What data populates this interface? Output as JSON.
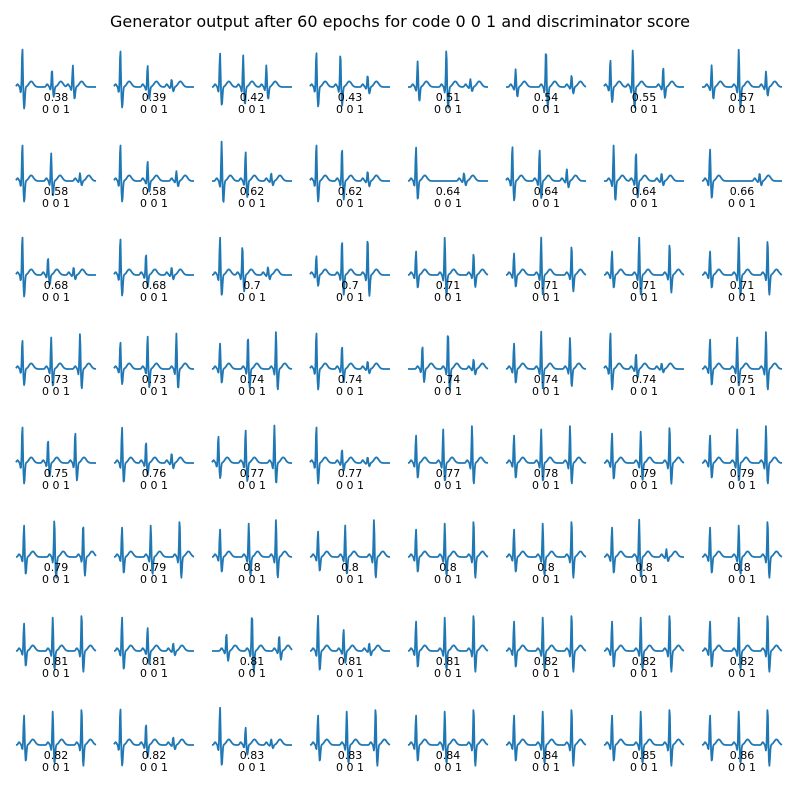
{
  "title": "Generator output after 60 epochs for code 0 0 1 and discriminator score",
  "colors": {
    "trace": "#1f77b4",
    "background": "#ffffff",
    "text": "#000000"
  },
  "chart_data": {
    "type": "line",
    "layout": "small-multiples 8x8 grid",
    "title": "Generator output after 60 epochs for code 0 0 1 and discriminator score",
    "axes_visible": false,
    "panel_caption_code": "0 0 1",
    "panels": [
      {
        "score": "0.38",
        "code": "0 0 1",
        "beats": [
          [
            0.08,
            1.0
          ],
          [
            0.45,
            0.45
          ],
          [
            0.71,
            0.55
          ]
        ]
      },
      {
        "score": "0.39",
        "code": "0 0 1",
        "beats": [
          [
            0.08,
            0.95
          ],
          [
            0.42,
            0.55
          ],
          [
            0.72,
            0.2
          ]
        ]
      },
      {
        "score": "0.42",
        "code": "0 0 1",
        "beats": [
          [
            0.1,
            0.85
          ],
          [
            0.39,
            0.8
          ],
          [
            0.68,
            0.55
          ]
        ]
      },
      {
        "score": "0.43",
        "code": "0 0 1",
        "beats": [
          [
            0.08,
            0.9
          ],
          [
            0.38,
            0.85
          ],
          [
            0.72,
            0.3
          ]
        ]
      },
      {
        "score": "0.51",
        "code": "0 0 1",
        "beats": [
          [
            0.12,
            0.65
          ],
          [
            0.48,
            0.95
          ],
          [
            0.78,
            0.2
          ]
        ]
      },
      {
        "score": "0.54",
        "code": "0 0 1",
        "beats": [
          [
            0.12,
            0.45
          ],
          [
            0.5,
            0.95
          ],
          [
            0.82,
            0.3
          ]
        ]
      },
      {
        "score": "0.55",
        "code": "0 0 1",
        "beats": [
          [
            0.08,
            0.7
          ],
          [
            0.36,
            0.95
          ],
          [
            0.74,
            0.5
          ]
        ]
      },
      {
        "score": "0.57",
        "code": "0 0 1",
        "beats": [
          [
            0.12,
            0.55
          ],
          [
            0.46,
            0.95
          ],
          [
            0.8,
            0.4
          ]
        ]
      },
      {
        "score": "0.58",
        "code": "0 0 1",
        "beats": [
          [
            0.08,
            0.95
          ],
          [
            0.44,
            0.7
          ],
          [
            0.8,
            0.2
          ]
        ]
      },
      {
        "score": "0.58",
        "code": "0 0 1",
        "beats": [
          [
            0.08,
            0.95
          ],
          [
            0.42,
            0.5
          ],
          [
            0.78,
            0.25
          ]
        ]
      },
      {
        "score": "0.62",
        "code": "0 0 1",
        "beats": [
          [
            0.12,
            1.0
          ],
          [
            0.42,
            0.75
          ],
          [
            0.74,
            0.2
          ]
        ]
      },
      {
        "score": "0.62",
        "code": "0 0 1",
        "beats": [
          [
            0.08,
            0.95
          ],
          [
            0.4,
            0.85
          ],
          [
            0.72,
            0.25
          ]
        ]
      },
      {
        "score": "0.64",
        "code": "0 0 1",
        "beats": [
          [
            0.1,
            0.85
          ],
          [
            0.7,
            0.2
          ]
        ]
      },
      {
        "score": "0.64",
        "code": "0 0 1",
        "beats": [
          [
            0.08,
            0.9
          ],
          [
            0.42,
            0.8
          ],
          [
            0.76,
            0.3
          ]
        ]
      },
      {
        "score": "0.64",
        "code": "0 0 1",
        "beats": [
          [
            0.12,
            0.9
          ],
          [
            0.4,
            0.75
          ],
          [
            0.72,
            0.2
          ]
        ]
      },
      {
        "score": "0.66",
        "code": "0 0 1",
        "beats": [
          [
            0.1,
            0.8
          ],
          [
            0.72,
            0.2
          ]
        ]
      },
      {
        "score": "0.68",
        "code": "0 0 1",
        "beats": [
          [
            0.08,
            1.0
          ],
          [
            0.4,
            0.45
          ],
          [
            0.72,
            0.2
          ]
        ]
      },
      {
        "score": "0.68",
        "code": "0 0 1",
        "beats": [
          [
            0.08,
            0.95
          ],
          [
            0.4,
            0.55
          ],
          [
            0.72,
            0.2
          ]
        ]
      },
      {
        "score": "0.7",
        "code": "0 0 1",
        "beats": [
          [
            0.1,
            0.95
          ],
          [
            0.38,
            0.75
          ],
          [
            0.7,
            0.2
          ]
        ]
      },
      {
        "score": "0.7",
        "code": "0 0 1",
        "beats": [
          [
            0.08,
            0.5
          ],
          [
            0.4,
            0.9
          ],
          [
            0.72,
            0.95
          ]
        ]
      },
      {
        "score": "0.71",
        "code": "0 0 1",
        "beats": [
          [
            0.1,
            0.6
          ],
          [
            0.46,
            0.95
          ],
          [
            0.82,
            0.55
          ]
        ]
      },
      {
        "score": "0.71",
        "code": "0 0 1",
        "beats": [
          [
            0.1,
            0.55
          ],
          [
            0.44,
            0.95
          ],
          [
            0.82,
            0.75
          ]
        ]
      },
      {
        "score": "0.71",
        "code": "0 0 1",
        "beats": [
          [
            0.1,
            0.6
          ],
          [
            0.44,
            0.95
          ],
          [
            0.82,
            0.8
          ]
        ]
      },
      {
        "score": "0.71",
        "code": "0 0 1",
        "beats": [
          [
            0.1,
            0.6
          ],
          [
            0.46,
            0.95
          ],
          [
            0.82,
            0.9
          ]
        ]
      },
      {
        "score": "0.73",
        "code": "0 0 1",
        "beats": [
          [
            0.08,
            0.75
          ],
          [
            0.44,
            0.8
          ],
          [
            0.8,
            0.9
          ]
        ]
      },
      {
        "score": "0.73",
        "code": "0 0 1",
        "beats": [
          [
            0.08,
            0.7
          ],
          [
            0.42,
            0.85
          ],
          [
            0.78,
            0.9
          ]
        ]
      },
      {
        "score": "0.74",
        "code": "0 0 1",
        "beats": [
          [
            0.1,
            0.65
          ],
          [
            0.45,
            0.85
          ],
          [
            0.8,
            0.95
          ]
        ]
      },
      {
        "score": "0.74",
        "code": "0 0 1",
        "beats": [
          [
            0.08,
            0.95
          ],
          [
            0.4,
            0.6
          ],
          [
            0.72,
            0.2
          ]
        ]
      },
      {
        "score": "0.74",
        "code": "0 0 1",
        "beats": [
          [
            0.18,
            0.6
          ],
          [
            0.5,
            0.95
          ],
          [
            0.82,
            0.25
          ]
        ]
      },
      {
        "score": "0.74",
        "code": "0 0 1",
        "beats": [
          [
            0.1,
            0.65
          ],
          [
            0.44,
            0.95
          ],
          [
            0.8,
            0.8
          ]
        ]
      },
      {
        "score": "0.74",
        "code": "0 0 1",
        "beats": [
          [
            0.08,
            0.95
          ],
          [
            0.4,
            0.4
          ],
          [
            0.72,
            0.15
          ]
        ]
      },
      {
        "score": "0.75",
        "code": "0 0 1",
        "beats": [
          [
            0.1,
            0.75
          ],
          [
            0.44,
            0.8
          ],
          [
            0.8,
            0.95
          ]
        ]
      },
      {
        "score": "0.75",
        "code": "0 0 1",
        "beats": [
          [
            0.08,
            0.95
          ],
          [
            0.4,
            0.6
          ],
          [
            0.74,
            0.8
          ]
        ]
      },
      {
        "score": "0.76",
        "code": "0 0 1",
        "beats": [
          [
            0.1,
            0.9
          ],
          [
            0.4,
            0.55
          ],
          [
            0.72,
            0.25
          ]
        ]
      },
      {
        "score": "0.77",
        "code": "0 0 1",
        "beats": [
          [
            0.08,
            0.7
          ],
          [
            0.42,
            0.85
          ],
          [
            0.78,
            0.95
          ]
        ]
      },
      {
        "score": "0.77",
        "code": "0 0 1",
        "beats": [
          [
            0.08,
            0.95
          ],
          [
            0.4,
            0.35
          ],
          [
            0.72,
            0.15
          ]
        ]
      },
      {
        "score": "0.77",
        "code": "0 0 1",
        "beats": [
          [
            0.1,
            0.7
          ],
          [
            0.44,
            0.85
          ],
          [
            0.8,
            0.95
          ]
        ]
      },
      {
        "score": "0.78",
        "code": "0 0 1",
        "beats": [
          [
            0.1,
            0.7
          ],
          [
            0.44,
            0.85
          ],
          [
            0.8,
            0.95
          ]
        ]
      },
      {
        "score": "0.79",
        "code": "0 0 1",
        "beats": [
          [
            0.1,
            0.75
          ],
          [
            0.46,
            0.8
          ],
          [
            0.82,
            0.95
          ]
        ]
      },
      {
        "score": "0.79",
        "code": "0 0 1",
        "beats": [
          [
            0.1,
            0.7
          ],
          [
            0.44,
            0.85
          ],
          [
            0.8,
            0.95
          ]
        ]
      },
      {
        "score": "0.79",
        "code": "0 0 1",
        "beats": [
          [
            0.1,
            0.8
          ],
          [
            0.48,
            0.95
          ],
          [
            0.84,
            0.85
          ]
        ]
      },
      {
        "score": "0.79",
        "code": "0 0 1",
        "beats": [
          [
            0.1,
            0.75
          ],
          [
            0.46,
            0.8
          ],
          [
            0.82,
            0.95
          ]
        ]
      },
      {
        "score": "0.8",
        "code": "0 0 1",
        "beats": [
          [
            0.1,
            0.7
          ],
          [
            0.46,
            0.85
          ],
          [
            0.8,
            0.95
          ]
        ]
      },
      {
        "score": "0.8",
        "code": "0 0 1",
        "beats": [
          [
            0.1,
            0.65
          ],
          [
            0.44,
            0.8
          ],
          [
            0.8,
            0.95
          ]
        ]
      },
      {
        "score": "0.8",
        "code": "0 0 1",
        "beats": [
          [
            0.1,
            0.7
          ],
          [
            0.46,
            0.85
          ],
          [
            0.82,
            0.95
          ]
        ]
      },
      {
        "score": "0.8",
        "code": "0 0 1",
        "beats": [
          [
            0.1,
            0.7
          ],
          [
            0.46,
            0.85
          ],
          [
            0.82,
            0.95
          ]
        ]
      },
      {
        "score": "0.8",
        "code": "0 0 1",
        "beats": [
          [
            0.1,
            0.75
          ],
          [
            0.44,
            0.95
          ],
          [
            0.78,
            0.2
          ]
        ]
      },
      {
        "score": "0.8",
        "code": "0 0 1",
        "beats": [
          [
            0.1,
            0.75
          ],
          [
            0.46,
            0.8
          ],
          [
            0.82,
            0.95
          ]
        ]
      },
      {
        "score": "0.81",
        "code": "0 0 1",
        "beats": [
          [
            0.1,
            0.7
          ],
          [
            0.46,
            0.85
          ],
          [
            0.82,
            0.95
          ]
        ]
      },
      {
        "score": "0.81",
        "code": "0 0 1",
        "beats": [
          [
            0.1,
            0.85
          ],
          [
            0.42,
            0.6
          ],
          [
            0.74,
            0.2
          ]
        ]
      },
      {
        "score": "0.81",
        "code": "0 0 1",
        "beats": [
          [
            0.18,
            0.45
          ],
          [
            0.5,
            0.95
          ],
          [
            0.84,
            0.4
          ]
        ]
      },
      {
        "score": "0.81",
        "code": "0 0 1",
        "beats": [
          [
            0.1,
            0.9
          ],
          [
            0.42,
            0.55
          ],
          [
            0.74,
            0.2
          ]
        ]
      },
      {
        "score": "0.81",
        "code": "0 0 1",
        "beats": [
          [
            0.1,
            0.75
          ],
          [
            0.46,
            0.85
          ],
          [
            0.82,
            0.95
          ]
        ]
      },
      {
        "score": "0.82",
        "code": "0 0 1",
        "beats": [
          [
            0.1,
            0.75
          ],
          [
            0.46,
            0.85
          ],
          [
            0.82,
            0.95
          ]
        ]
      },
      {
        "score": "0.82",
        "code": "0 0 1",
        "beats": [
          [
            0.1,
            0.75
          ],
          [
            0.46,
            0.85
          ],
          [
            0.82,
            0.95
          ]
        ]
      },
      {
        "score": "0.82",
        "code": "0 0 1",
        "beats": [
          [
            0.1,
            0.75
          ],
          [
            0.46,
            0.85
          ],
          [
            0.82,
            0.95
          ]
        ]
      },
      {
        "score": "0.82",
        "code": "0 0 1",
        "beats": [
          [
            0.1,
            0.75
          ],
          [
            0.46,
            0.85
          ],
          [
            0.82,
            0.95
          ]
        ]
      },
      {
        "score": "0.82",
        "code": "0 0 1",
        "beats": [
          [
            0.08,
            0.95
          ],
          [
            0.4,
            0.55
          ],
          [
            0.74,
            0.2
          ]
        ]
      },
      {
        "score": "0.83",
        "code": "0 0 1",
        "beats": [
          [
            0.1,
            0.95
          ],
          [
            0.42,
            0.45
          ],
          [
            0.74,
            0.15
          ]
        ]
      },
      {
        "score": "0.83",
        "code": "0 0 1",
        "beats": [
          [
            0.1,
            0.75
          ],
          [
            0.46,
            0.85
          ],
          [
            0.82,
            0.95
          ]
        ]
      },
      {
        "score": "0.84",
        "code": "0 0 1",
        "beats": [
          [
            0.1,
            0.75
          ],
          [
            0.46,
            0.85
          ],
          [
            0.82,
            0.95
          ]
        ]
      },
      {
        "score": "0.84",
        "code": "0 0 1",
        "beats": [
          [
            0.1,
            0.75
          ],
          [
            0.46,
            0.85
          ],
          [
            0.82,
            0.95
          ]
        ]
      },
      {
        "score": "0.85",
        "code": "0 0 1",
        "beats": [
          [
            0.1,
            0.75
          ],
          [
            0.46,
            0.85
          ],
          [
            0.82,
            0.95
          ]
        ]
      },
      {
        "score": "0.86",
        "code": "0 0 1",
        "beats": [
          [
            0.1,
            0.75
          ],
          [
            0.46,
            0.85
          ],
          [
            0.82,
            0.95
          ]
        ]
      }
    ]
  }
}
